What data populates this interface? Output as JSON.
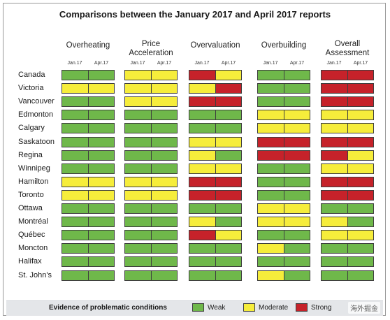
{
  "chart_data": {
    "type": "table",
    "title": "Comparisons between the January 2017 and April 2017 reports",
    "groups": [
      "Overheating",
      "Price\nAcceleration",
      "Overvaluation",
      "Overbuilding",
      "Overall\nAssessment"
    ],
    "periods": [
      "Jan.17",
      "Apr.17"
    ],
    "rows": [
      "Canada",
      "Victoria",
      "Vancouver",
      "Edmonton",
      "Calgary",
      "Saskatoon",
      "Regina",
      "Winnipeg",
      "Hamilton",
      "Toronto",
      "Ottawa",
      "Montréal",
      "Québec",
      "Moncton",
      "Halifax",
      "St. John's"
    ],
    "values": [
      [
        "W",
        "W",
        "Y",
        "Y",
        "R",
        "Y",
        "W",
        "W",
        "R",
        "R"
      ],
      [
        "Y",
        "Y",
        "Y",
        "Y",
        "Y",
        "R",
        "W",
        "W",
        "R",
        "R"
      ],
      [
        "W",
        "W",
        "Y",
        "Y",
        "R",
        "R",
        "W",
        "W",
        "R",
        "R"
      ],
      [
        "W",
        "W",
        "W",
        "W",
        "W",
        "W",
        "Y",
        "Y",
        "Y",
        "Y"
      ],
      [
        "W",
        "W",
        "W",
        "W",
        "W",
        "W",
        "Y",
        "Y",
        "Y",
        "Y"
      ],
      [
        "W",
        "W",
        "W",
        "W",
        "Y",
        "Y",
        "R",
        "R",
        "R",
        "R"
      ],
      [
        "W",
        "W",
        "W",
        "W",
        "Y",
        "W",
        "R",
        "R",
        "R",
        "Y"
      ],
      [
        "W",
        "W",
        "W",
        "W",
        "Y",
        "Y",
        "W",
        "W",
        "Y",
        "Y"
      ],
      [
        "Y",
        "Y",
        "Y",
        "Y",
        "R",
        "R",
        "W",
        "W",
        "R",
        "R"
      ],
      [
        "Y",
        "Y",
        "Y",
        "Y",
        "R",
        "R",
        "W",
        "W",
        "R",
        "R"
      ],
      [
        "W",
        "W",
        "W",
        "W",
        "W",
        "W",
        "Y",
        "Y",
        "W",
        "W"
      ],
      [
        "W",
        "W",
        "W",
        "W",
        "Y",
        "W",
        "Y",
        "Y",
        "Y",
        "W"
      ],
      [
        "W",
        "W",
        "W",
        "W",
        "R",
        "Y",
        "W",
        "W",
        "Y",
        "Y"
      ],
      [
        "W",
        "W",
        "W",
        "W",
        "W",
        "W",
        "Y",
        "W",
        "W",
        "W"
      ],
      [
        "W",
        "W",
        "W",
        "W",
        "W",
        "W",
        "W",
        "W",
        "W",
        "W"
      ],
      [
        "W",
        "W",
        "W",
        "W",
        "W",
        "W",
        "Y",
        "W",
        "W",
        "W"
      ]
    ],
    "legend": {
      "title": "Evidence of problematic conditions",
      "items": [
        {
          "key": "W",
          "label": "Weak",
          "color": "#6fb84a"
        },
        {
          "key": "Y",
          "label": "Moderate",
          "color": "#f6ed3b"
        },
        {
          "key": "R",
          "label": "Strong",
          "color": "#c6222a"
        }
      ]
    }
  },
  "watermark": "海外掘金"
}
